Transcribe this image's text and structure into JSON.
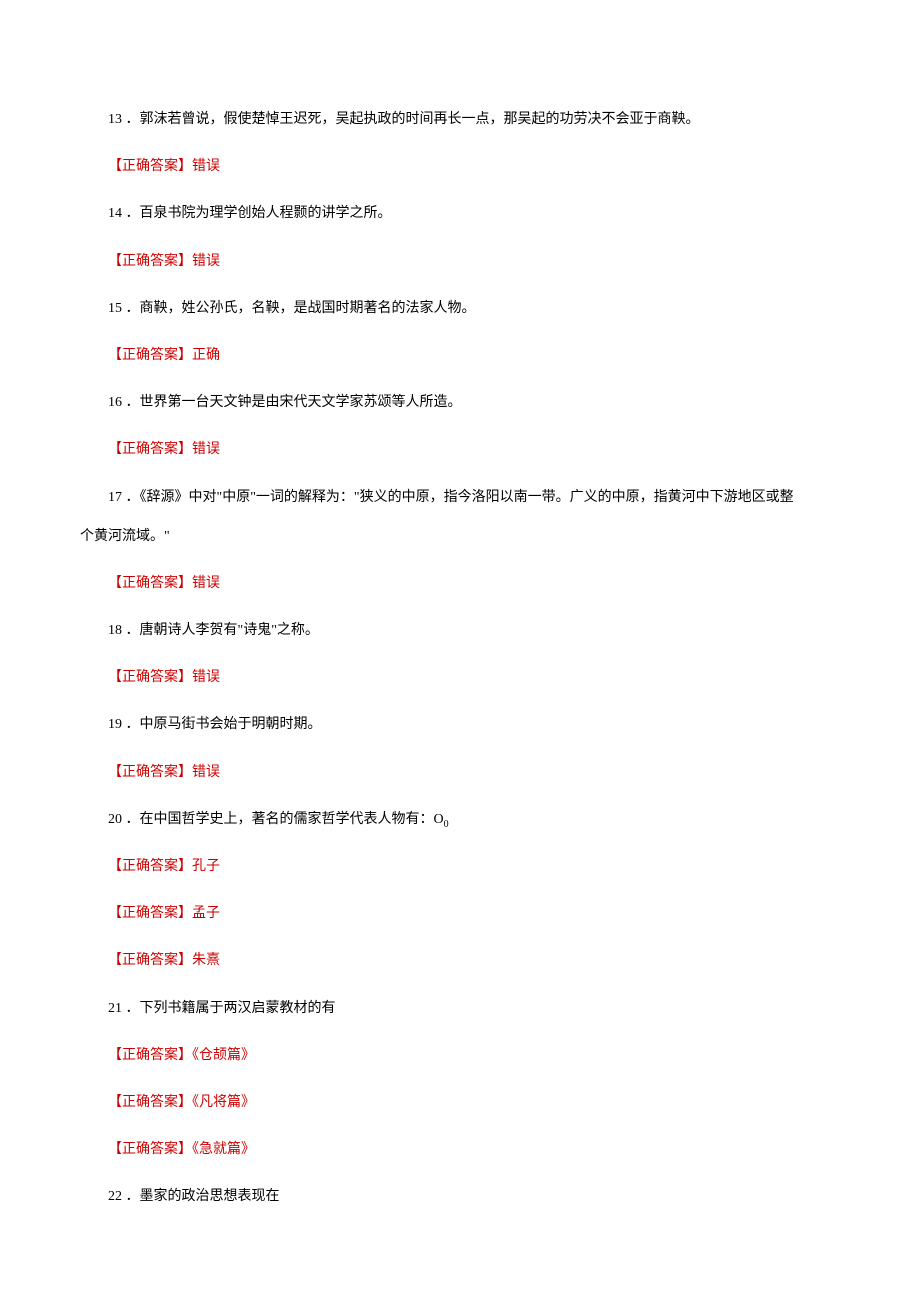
{
  "items": [
    {
      "number": "13",
      "question": "．郭沫若曾说，假使楚悼王迟死，吴起执政的时间再长一点，那吴起的功劳决不会亚于商鞅。",
      "answers": [
        "【正确答案】错误"
      ]
    },
    {
      "number": "14",
      "question": "．百泉书院为理学创始人程颢的讲学之所。",
      "answers": [
        "【正确答案】错误"
      ]
    },
    {
      "number": "15",
      "question": "．商鞅，姓公孙氏，名鞅，是战国时期著名的法家人物。",
      "answers": [
        "【正确答案】正确"
      ]
    },
    {
      "number": "16",
      "question": "．世界第一台天文钟是由宋代天文学家苏颂等人所造。",
      "answers": [
        "【正确答案】错误"
      ]
    },
    {
      "number": "17",
      "question_line1": "．《辞源》中对\"中原\"一词的解释为：\"狭义的中原，指今洛阳以南一带。广义的中原，指黄河中下游地区或整",
      "question_line2": "个黄河流域。\"",
      "answers": [
        "【正确答案】错误"
      ]
    },
    {
      "number": "18",
      "question": "．唐朝诗人李贺有\"诗鬼\"之称。",
      "answers": [
        "【正确答案】错误"
      ]
    },
    {
      "number": "19",
      "question": "．中原马街书会始于明朝时期。",
      "answers": [
        "【正确答案】错误"
      ]
    },
    {
      "number": "20",
      "question_prefix": "．在中国哲学史上，著名的儒家哲学代表人物有：O",
      "question_suffix": "0",
      "answers": [
        "【正确答案】孔子",
        "【正确答案】孟子",
        "【正确答案】朱熹"
      ]
    },
    {
      "number": "21",
      "question": "．下列书籍属于两汉启蒙教材的有",
      "answers": [
        "【正确答案】《仓颉篇》",
        "【正确答案】《凡将篇》",
        "【正确答案】《急就篇》"
      ]
    },
    {
      "number": "22",
      "question": "．墨家的政治思想表现在",
      "answers": []
    }
  ],
  "colors": {
    "text": "#000000",
    "answer": "#cc0000",
    "background": "#ffffff"
  },
  "typography": {
    "fontSize": 14,
    "lineHeight": 2.8,
    "fontFamily": "SimSun"
  }
}
